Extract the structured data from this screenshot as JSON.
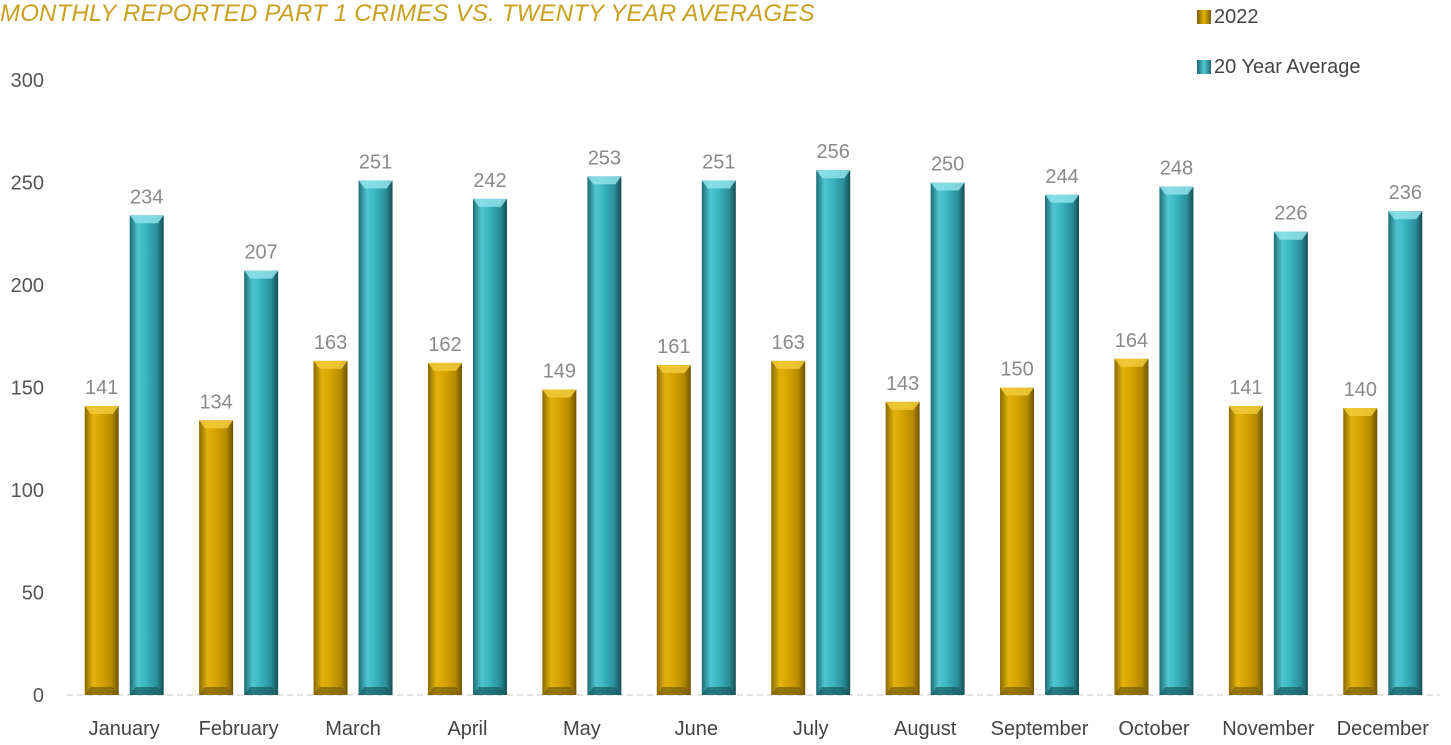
{
  "chart_data": {
    "type": "bar",
    "title": "MONTHLY REPORTED PART 1 CRIMES VS. TWENTY YEAR AVERAGES",
    "categories": [
      "January",
      "February",
      "March",
      "April",
      "May",
      "June",
      "July",
      "August",
      "September",
      "October",
      "November",
      "December"
    ],
    "series": [
      {
        "name": "2022",
        "color": "#C9A000",
        "values": [
          141,
          134,
          163,
          162,
          149,
          161,
          163,
          143,
          150,
          164,
          141,
          140
        ]
      },
      {
        "name": "20 Year Average",
        "color": "#2EA8B4",
        "values": [
          234,
          207,
          251,
          242,
          253,
          251,
          256,
          250,
          244,
          248,
          226,
          236
        ]
      }
    ],
    "ylim": [
      0,
      300
    ],
    "yticks": [
      0,
      50,
      100,
      150,
      200,
      250,
      300
    ],
    "xlabel": "",
    "ylabel": "",
    "grid": false,
    "legend_position": "top-right",
    "data_labels": true
  }
}
